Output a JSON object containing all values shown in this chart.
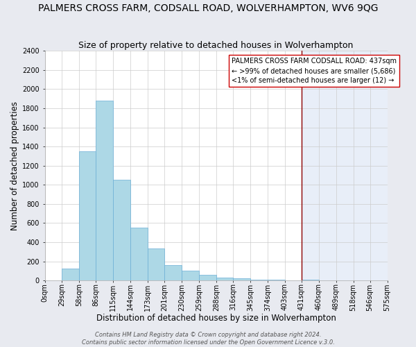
{
  "title": "PALMERS CROSS FARM, CODSALL ROAD, WOLVERHAMPTON, WV6 9QG",
  "subtitle": "Size of property relative to detached houses in Wolverhampton",
  "xlabel": "Distribution of detached houses by size in Wolverhampton",
  "ylabel": "Number of detached properties",
  "footer_lines": [
    "Contains HM Land Registry data © Crown copyright and database right 2024.",
    "Contains public sector information licensed under the Open Government Licence v.3.0."
  ],
  "bin_edges": [
    0,
    29,
    58,
    86,
    115,
    144,
    173,
    201,
    230,
    259,
    288,
    316,
    345,
    374,
    403,
    431,
    460,
    489,
    518,
    546,
    575
  ],
  "counts": [
    0,
    125,
    1350,
    1880,
    1050,
    550,
    335,
    160,
    105,
    60,
    30,
    20,
    5,
    5,
    0,
    5,
    0,
    0,
    0,
    0
  ],
  "bar_facecolor": "#add8e6",
  "bar_edgecolor": "#6baed6",
  "vline_x": 431,
  "vline_color": "#8b0000",
  "annotation_title": "PALMERS CROSS FARM CODSALL ROAD: 437sqm",
  "annotation_line1": "← >99% of detached houses are smaller (5,686)",
  "annotation_line2": "<1% of semi-detached houses are larger (12) →",
  "ylim": [
    0,
    2400
  ],
  "yticks": [
    0,
    200,
    400,
    600,
    800,
    1000,
    1200,
    1400,
    1600,
    1800,
    2000,
    2200,
    2400
  ],
  "tick_labels": [
    "0sqm",
    "29sqm",
    "58sqm",
    "86sqm",
    "115sqm",
    "144sqm",
    "173sqm",
    "201sqm",
    "230sqm",
    "259sqm",
    "288sqm",
    "316sqm",
    "345sqm",
    "374sqm",
    "403sqm",
    "431sqm",
    "460sqm",
    "489sqm",
    "518sqm",
    "546sqm",
    "575sqm"
  ],
  "plot_bg_color": "#ffffff",
  "fig_bg_color": "#e8eaf0",
  "right_bg_color": "#e8eef8",
  "grid_color": "#cccccc",
  "title_fontsize": 10,
  "subtitle_fontsize": 9,
  "label_fontsize": 8.5,
  "tick_fontsize": 7,
  "annot_fontsize": 7,
  "footer_fontsize": 6
}
